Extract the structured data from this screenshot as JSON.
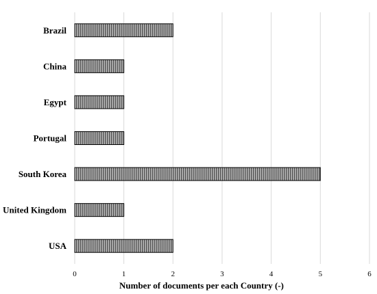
{
  "chart_data": {
    "type": "bar",
    "orientation": "horizontal",
    "categories": [
      "Brazil",
      "China",
      "Egypt",
      "Portugal",
      "South Korea",
      "United Kingdom",
      "USA"
    ],
    "values": [
      2,
      1,
      1,
      1,
      5,
      1,
      2
    ],
    "title": "",
    "xlabel": "Number of documents per each Country (-)",
    "ylabel": "",
    "xlim": [
      0,
      6
    ],
    "xticks": [
      "0",
      "1",
      "2",
      "3",
      "4",
      "5",
      "6"
    ],
    "grid": "vertical",
    "legend": "none",
    "bar_fill": "vertical-hatch-gray",
    "colors": {
      "bar_stroke": "#000000",
      "hatch_dark": "#555555",
      "hatch_light": "#bdbdbd",
      "grid": "#d9d9d9"
    }
  }
}
